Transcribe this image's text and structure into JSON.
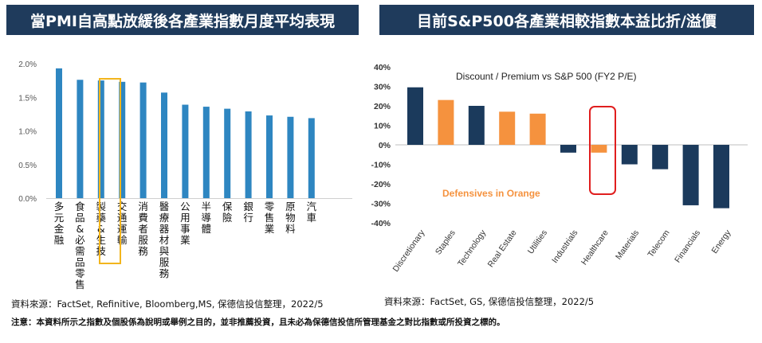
{
  "left_panel": {
    "banner": "當PMI自高點放緩後各產業指數月度平均表現",
    "source": "資料來源：FactSet, Refinitive, Bloomberg,MS, 保德信投信整理，2022/5"
  },
  "right_panel": {
    "banner": "目前S&P500各產業相較指數本益比折/溢價",
    "source": "資料來源：FactSet, GS, 保德信投信整理，2022/5"
  },
  "note": "注意：本資料所示之指數及個股係為說明或舉例之目的，並非推薦投資，且未必為保德信投信所管理基金之對比指數或所投資之標的。",
  "colors": {
    "banner": "#1f3b5c",
    "blue": "#2e86c1",
    "navy": "#1b3a5c",
    "orange": "#f5923e",
    "highlight_left": "#f2b51d",
    "highlight_right": "#e01e1e"
  },
  "chart_data": [
    {
      "type": "bar",
      "title": "",
      "xlabel": "",
      "ylabel": "",
      "ylim": [
        0,
        2.0
      ],
      "yticks": [
        "0.0%",
        "0.5%",
        "1.0%",
        "1.5%",
        "2.0%"
      ],
      "grid": false,
      "categories": [
        "多元金融",
        "食品&必需品零售",
        "製藥&生技",
        "交通運輸",
        "消費者服務",
        "醫療器材與服務",
        "公用事業",
        "半導體",
        "保險",
        "銀行",
        "零售業",
        "原物料",
        "汽車"
      ],
      "values": [
        1.93,
        1.76,
        1.75,
        1.73,
        1.72,
        1.57,
        1.39,
        1.36,
        1.33,
        1.29,
        1.23,
        1.21,
        1.19
      ],
      "highlight": "製藥&生技"
    },
    {
      "type": "bar",
      "title": "Discount / Premium vs S&P 500 (FY2 P/E)",
      "annotation": "Defensives in Orange",
      "xlabel": "",
      "ylabel": "",
      "ylim": [
        -40,
        40
      ],
      "yticks": [
        "-40%",
        "-30%",
        "-20%",
        "-10%",
        "0%",
        "10%",
        "20%",
        "30%",
        "40%"
      ],
      "grid": false,
      "categories": [
        "Discretionary",
        "Staples",
        "Technology",
        "Real Estate",
        "Utilities",
        "Industrials",
        "Healthcare",
        "Materials",
        "Telecom",
        "Financials",
        "Energy"
      ],
      "values": [
        29.5,
        23,
        20,
        17,
        16,
        -4,
        -4,
        -10,
        -12.5,
        -31,
        -32.5
      ],
      "defensive": [
        false,
        true,
        false,
        true,
        true,
        false,
        true,
        false,
        false,
        false,
        false
      ],
      "highlight": "Healthcare"
    }
  ]
}
